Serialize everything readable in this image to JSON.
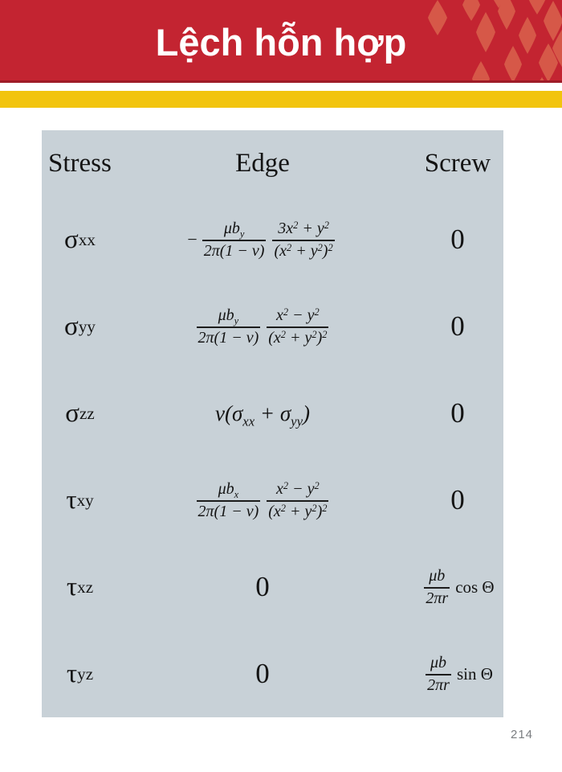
{
  "colors": {
    "banner_red": "#C32431",
    "banner_edge_dark_red": "#9E1C28",
    "diamond_accent": "#D65848",
    "gold_bar": "#F2C40D",
    "table_bg": "#C8D1D7",
    "page_number_gray": "#7A7D80"
  },
  "header": {
    "title": "Lệch hỗn hợp"
  },
  "table": {
    "columns": [
      "Stress",
      "Edge",
      "Screw"
    ],
    "rows": [
      {
        "stress": "σ_{xx}",
        "edge": [
          {
            "type": "minus",
            "value": "−"
          },
          {
            "type": "frac",
            "num": "μb_{y}",
            "den": "2π(1 − ν)"
          },
          {
            "type": "frac",
            "num": "3x^{2} + y^{2}",
            "den": "(x^{2} + y^{2})^{2}"
          }
        ],
        "screw": [
          {
            "type": "zero",
            "value": "0"
          }
        ]
      },
      {
        "stress": "σ_{yy}",
        "edge": [
          {
            "type": "frac",
            "num": "μb_{y}",
            "den": "2π(1 − ν)"
          },
          {
            "type": "frac",
            "num": "x^{2} − y^{2}",
            "den": "(x^{2} + y^{2})^{2}"
          }
        ],
        "screw": [
          {
            "type": "zero",
            "value": "0"
          }
        ]
      },
      {
        "stress": "σ_{zz}",
        "edge": [
          {
            "type": "display",
            "value": "ν(σ_{xx} + σ_{yy})"
          }
        ],
        "screw": [
          {
            "type": "zero",
            "value": "0"
          }
        ]
      },
      {
        "stress": "τ_{xy}",
        "edge": [
          {
            "type": "frac",
            "num": "μb_{x}",
            "den": "2π(1 − ν)"
          },
          {
            "type": "frac",
            "num": "x^{2} − y^{2}",
            "den": "(x^{2} + y^{2})^{2}"
          }
        ],
        "screw": [
          {
            "type": "zero",
            "value": "0"
          }
        ]
      },
      {
        "stress": "τ_{xz}",
        "edge": [
          {
            "type": "zero",
            "value": "0"
          }
        ],
        "screw": [
          {
            "type": "frac",
            "num": "μb",
            "den": "2πr"
          },
          {
            "type": "roman",
            "value": "cos Θ"
          }
        ]
      },
      {
        "stress": "τ_{yz}",
        "edge": [
          {
            "type": "zero",
            "value": "0"
          }
        ],
        "screw": [
          {
            "type": "frac",
            "num": "μb",
            "den": "2πr"
          },
          {
            "type": "roman",
            "value": "sin Θ"
          }
        ]
      }
    ]
  },
  "footer": {
    "page_number": "214"
  }
}
